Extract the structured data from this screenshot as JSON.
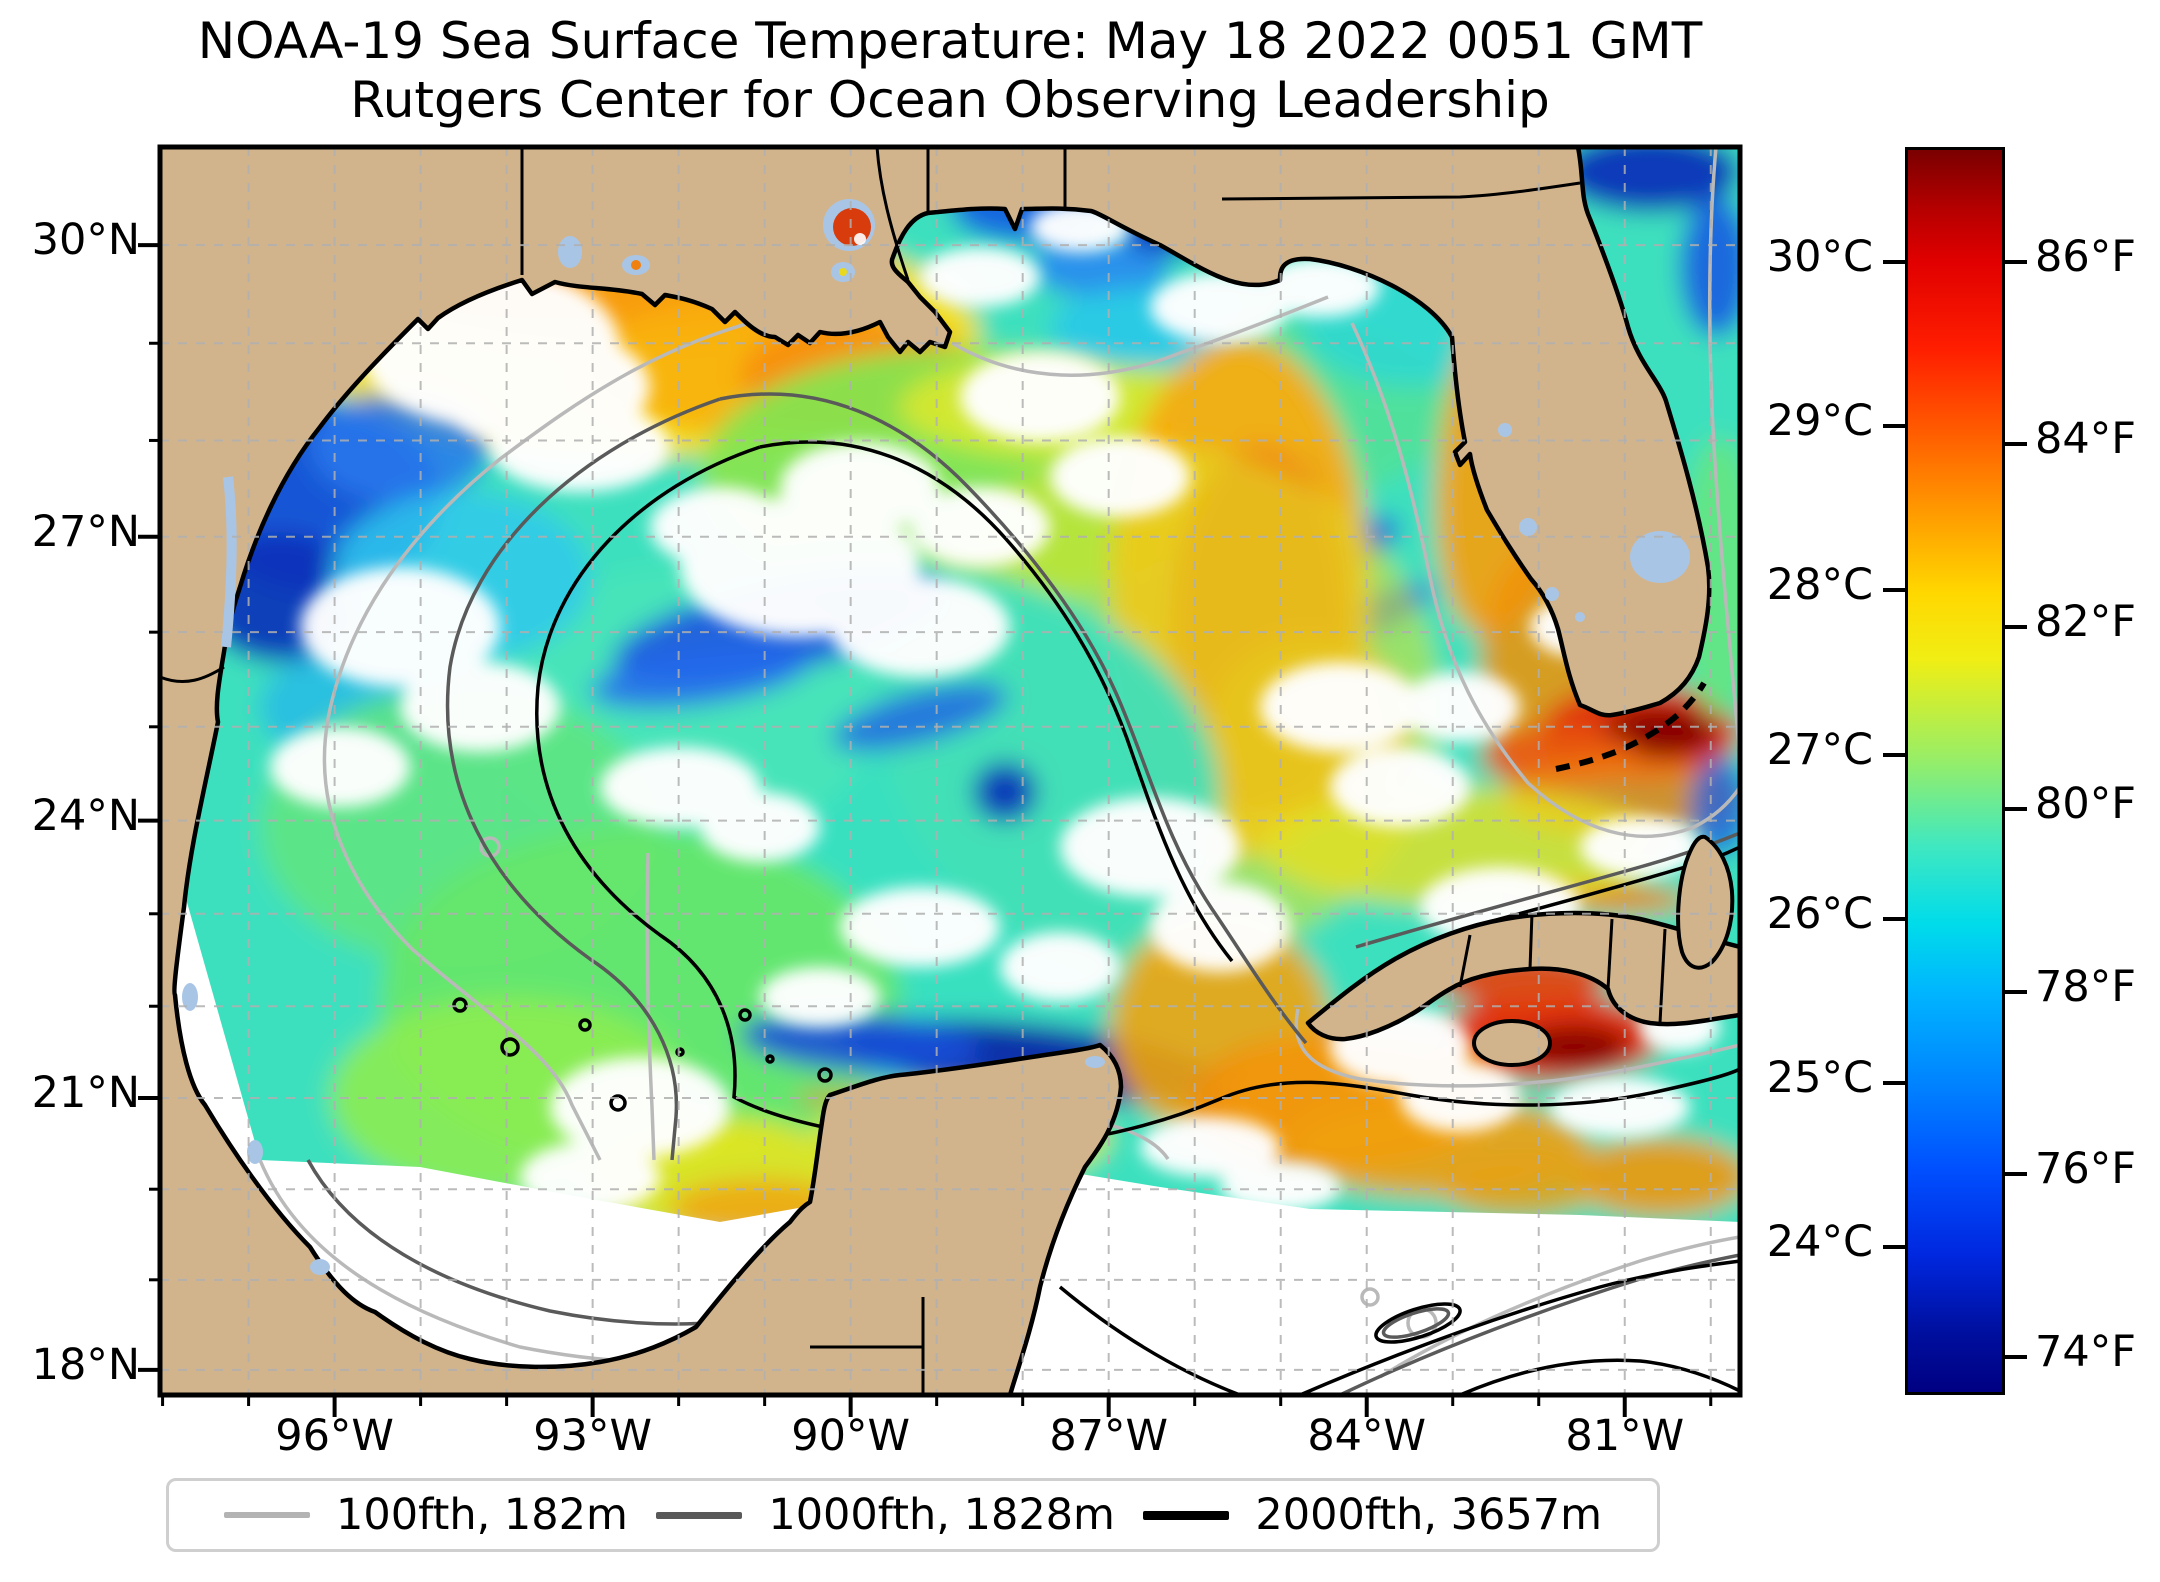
{
  "figure": {
    "title_line1": "NOAA-19 Sea Surface Temperature: May 18 2022 0051 GMT",
    "title_line2": "Rutgers Center for Ocean Observing Leadership"
  },
  "chart_data": {
    "type": "heatmap",
    "subject": "Sea surface temperature of the Gulf of Mexico from NOAA-19 satellite pass",
    "map_region": "Gulf of Mexico, western Caribbean and adjacent Atlantic",
    "x_axis": {
      "tick_labels": [
        "96°W",
        "93°W",
        "90°W",
        "87°W",
        "84°W",
        "81°W"
      ],
      "tick_values": [
        96,
        93,
        90,
        87,
        84,
        81
      ],
      "minor_tick_interval_deg": 1,
      "gridline_interval_deg": 1,
      "lon_range_west_to_east": [
        98.03,
        79.66
      ]
    },
    "y_axis": {
      "tick_labels": [
        "30°N",
        "27°N",
        "24°N",
        "21°N",
        "18°N"
      ],
      "tick_values": [
        30,
        27,
        24,
        21,
        18
      ],
      "minor_tick_interval_deg": 1,
      "gridline_interval_deg": 1,
      "lat_range_south_to_north": [
        17.72,
        30.99
      ],
      "projection": "mercator"
    },
    "colorbar": {
      "celsius_tick_labels": [
        "30°C",
        "29°C",
        "28°C",
        "27°C",
        "26°C",
        "25°C",
        "24°C"
      ],
      "celsius_tick_values": [
        30,
        29,
        28,
        27,
        26,
        25,
        24
      ],
      "fahrenheit_tick_labels": [
        "86°F",
        "84°F",
        "82°F",
        "80°F",
        "78°F",
        "76°F",
        "74°F"
      ],
      "fahrenheit_tick_values": [
        86,
        84,
        82,
        80,
        78,
        76,
        74
      ],
      "scale_top_celsius": 30.7,
      "scale_bottom_celsius": 23.1,
      "colormap": "jet"
    },
    "legend": {
      "entries": [
        {
          "label": "100fth, 182m",
          "color": "#b3b3b3",
          "thickness": 6
        },
        {
          "label": "1000fth, 1828m",
          "color": "#595959",
          "thickness": 7
        },
        {
          "label": "2000fth, 3657m",
          "color": "#000000",
          "thickness": 9
        }
      ]
    },
    "colors": {
      "land": "#d2b48c",
      "lake": "#a9c5e6",
      "no_data": "#ffffff",
      "gridline": "#b0b0b0",
      "contour_100fth": "#b9b9b9",
      "contour_1000fth": "#5a5a5a",
      "contour_2000fth": "#000000"
    },
    "notable_features": [
      "Warm orange band (28-29C) along the NW shelf off Texas-Louisiana",
      "Cool blue filaments (24-25C) off the south Texas coast",
      "Broad green-cyan (26-27C) central Gulf water",
      "Warm Loop Current orange tongue east of 88W",
      "Very warm (30C+) dark red water in Florida Bay and south of Cuba",
      "Cold dark-blue front along the north Yucatan shelf edge",
      "White areas are clouds / no data; swath edge cuts off data south of ~20N"
    ]
  }
}
